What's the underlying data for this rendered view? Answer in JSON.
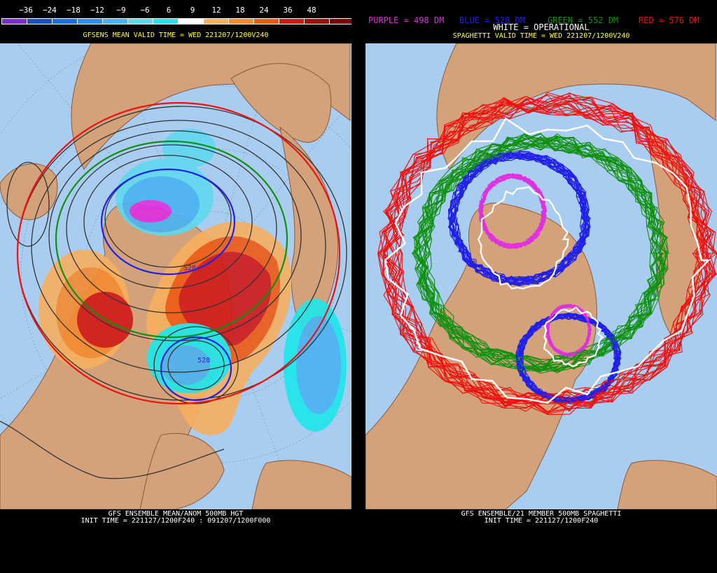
{
  "left_panel": {
    "colorbar": {
      "values": [
        "−36",
        "−24",
        "−18",
        "−12",
        "−9",
        "−6",
        "6",
        "9",
        "12",
        "18",
        "24",
        "36",
        "48"
      ],
      "colors": [
        "#7b2fd0",
        "#1c4fc4",
        "#1f6fe0",
        "#2f8df0",
        "#49b3f3",
        "#5fd9ef",
        "#1de7ec",
        "#ffffff",
        "#f7b060",
        "#f58a30",
        "#ee5a14",
        "#d01818",
        "#a40c0c",
        "#7a0404",
        "#7a0060"
      ]
    },
    "valid_time": "GFSENS MEAN VALID TIME = WED 221207/1200V240",
    "footer_line1": "GFS ENSEMBLE MEAN/ANOM 500MB HGT",
    "footer_line2": "INIT TIME = 221127/1200F240 : 091207/1200F000",
    "contour_labels": [
      "528",
      "528"
    ]
  },
  "right_panel": {
    "legend": {
      "purple": "PURPLE = 498 DM",
      "blue": "BLUE = 528 DM",
      "green": "GREEN = 552 DM",
      "red": "RED = 576 DM",
      "white": "WHITE = OPERATIONAL"
    },
    "valid_time": "SPAGHETTI VALID TIME = WED 221207/1200V240",
    "footer_line1": "GFS ENSEMBLE/21 MEMBER 500MB SPAGHETTI",
    "footer_line2": "INIT TIME = 221127/1200F240",
    "colors": {
      "purple": "#e030e0",
      "blue": "#2020e8",
      "green": "#109010",
      "red": "#f01010",
      "white": "#ffffff"
    }
  },
  "map_colors": {
    "ocean": "#a9cdf0",
    "land": "#d4a27a",
    "coast": "#8a5a3a"
  }
}
